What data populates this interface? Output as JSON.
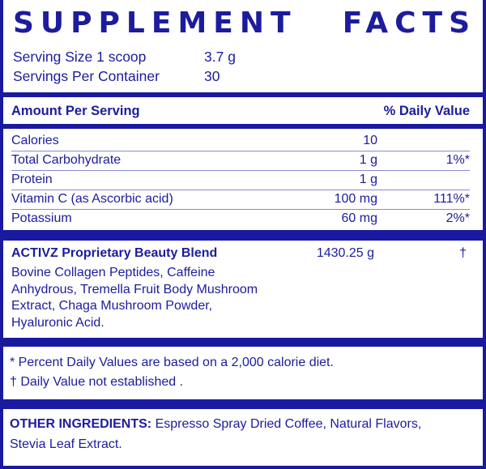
{
  "title": {
    "word1": "SUPPLEMENT",
    "word2": "FACTS"
  },
  "serving": {
    "size_label": "Serving Size 1 scoop",
    "size_value": "3.7 g",
    "per_container_label": "Servings Per Container",
    "per_container_value": "30"
  },
  "header": {
    "amount": "Amount Per Serving",
    "daily_value": "% Daily Value"
  },
  "nutrients": [
    {
      "name": "Calories",
      "amount": "10",
      "dv": ""
    },
    {
      "name": "Total Carbohydrate",
      "amount": "1 g",
      "dv": "1%*"
    },
    {
      "name": "Protein",
      "amount": "1 g",
      "dv": ""
    },
    {
      "name": "Vitamin C (as Ascorbic acid)",
      "amount": "100 mg",
      "dv": "111%*"
    },
    {
      "name": "Potassium",
      "amount": "60 mg",
      "dv": "2%*"
    }
  ],
  "blend": {
    "name": "ACTIVZ Proprietary Beauty Blend",
    "amount": "1430.25 g",
    "dv": "†",
    "lines": [
      "Bovine Collagen Peptides, Caffeine",
      "Anhydrous, Tremella Fruit Body Mushroom",
      "Extract, Chaga Mushroom Powder,",
      "Hyaluronic Acid."
    ]
  },
  "footnotes": [
    "* Percent Daily Values are based on a 2,000 calorie diet.",
    "† Daily Value not established ."
  ],
  "other": {
    "label": "OTHER INGREDIENTS:",
    "line1": " Espresso Spray Dried Coffee, Natural Flavors,",
    "line2": "Stevia Leaf Extract."
  },
  "colors": {
    "brand": "#1a1aa0"
  }
}
